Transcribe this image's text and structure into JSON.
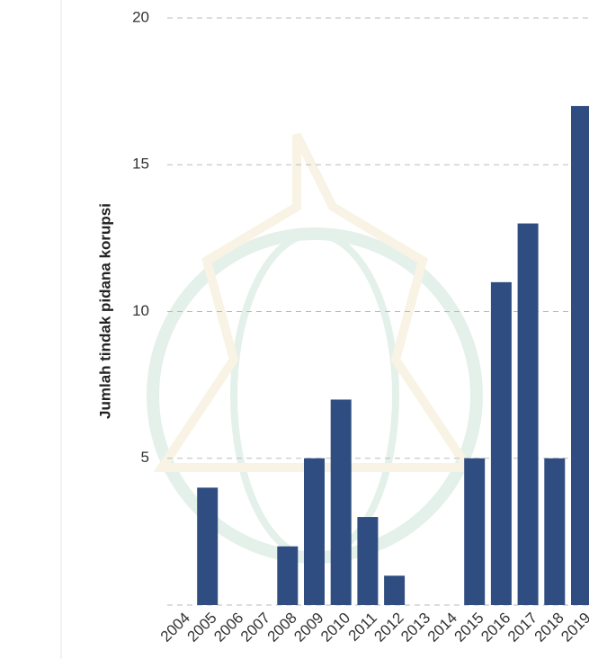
{
  "chart_data": {
    "type": "bar",
    "y_label": "Jumlah tindak pidana korupsi",
    "categories": [
      "2004",
      "2005",
      "2006",
      "2007",
      "2008",
      "2009",
      "2010",
      "2011",
      "2012",
      "2013",
      "2014",
      "2015",
      "2016",
      "2017",
      "2018",
      "2019"
    ],
    "values": [
      0,
      4,
      0,
      0,
      2,
      5,
      7,
      3,
      1,
      0,
      0,
      5,
      11,
      13,
      5,
      17
    ],
    "color": "#2f4d80",
    "ylim": [
      0,
      20
    ],
    "yticks": [
      5,
      10,
      15,
      20
    ],
    "grid": true
  }
}
